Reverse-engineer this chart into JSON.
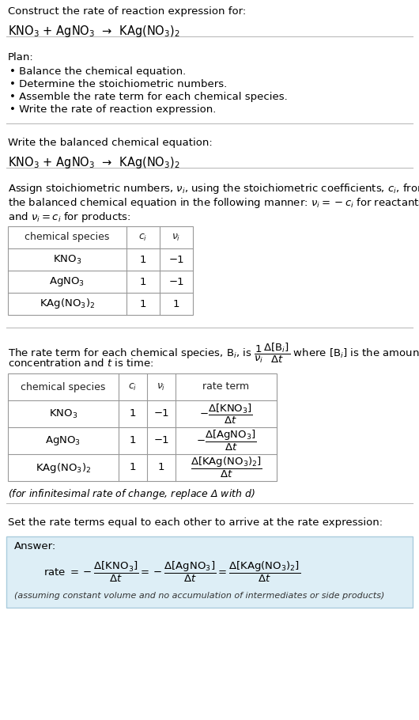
{
  "bg_color": "#ffffff",
  "text_color": "#000000",
  "section1_title": "Construct the rate of reaction expression for:",
  "section1_equation": "KNO$_3$ + AgNO$_3$  →  KAg(NO$_3$)$_2$",
  "plan_title": "Plan:",
  "plan_items": [
    "• Balance the chemical equation.",
    "• Determine the stoichiometric numbers.",
    "• Assemble the rate term for each chemical species.",
    "• Write the rate of reaction expression."
  ],
  "balanced_eq_title": "Write the balanced chemical equation:",
  "balanced_eq": "KNO$_3$ + AgNO$_3$  →  KAg(NO$_3$)$_2$",
  "stoich_intro_line1": "Assign stoichiometric numbers, $\\nu_i$, using the stoichiometric coefficients, $c_i$, from",
  "stoich_intro_line2": "the balanced chemical equation in the following manner: $\\nu_i = -c_i$ for reactants",
  "stoich_intro_line3": "and $\\nu_i = c_i$ for products:",
  "table1_headers": [
    "chemical species",
    "$c_i$",
    "$\\nu_i$"
  ],
  "table1_rows": [
    [
      "KNO$_3$",
      "1",
      "−1"
    ],
    [
      "AgNO$_3$",
      "1",
      "−1"
    ],
    [
      "KAg(NO$_3$)$_2$",
      "1",
      "1"
    ]
  ],
  "rate_intro_line1": "The rate term for each chemical species, B$_i$, is $\\dfrac{1}{\\nu_i}\\dfrac{\\Delta[\\mathrm{B}_i]}{\\Delta t}$ where [B$_i$] is the amount",
  "rate_intro_line2": "concentration and $t$ is time:",
  "table2_headers": [
    "chemical species",
    "$c_i$",
    "$\\nu_i$",
    "rate term"
  ],
  "table2_rows": [
    [
      "KNO$_3$",
      "1",
      "−1",
      "$-\\dfrac{\\Delta[\\mathrm{KNO_3}]}{\\Delta t}$"
    ],
    [
      "AgNO$_3$",
      "1",
      "−1",
      "$-\\dfrac{\\Delta[\\mathrm{AgNO_3}]}{\\Delta t}$"
    ],
    [
      "KAg(NO$_3$)$_2$",
      "1",
      "1",
      "$\\dfrac{\\Delta[\\mathrm{KAg(NO_3)_2}]}{\\Delta t}$"
    ]
  ],
  "infinitesimal_note": "(for infinitesimal rate of change, replace Δ with $d$)",
  "rate_expr_intro": "Set the rate terms equal to each other to arrive at the rate expression:",
  "answer_label": "Answer:",
  "answer_eq": "rate $= -\\dfrac{\\Delta[\\mathrm{KNO_3}]}{\\Delta t} = -\\dfrac{\\Delta[\\mathrm{AgNO_3}]}{\\Delta t} = \\dfrac{\\Delta[\\mathrm{KAg(NO_3)_2}]}{\\Delta t}$",
  "answer_note": "(assuming constant volume and no accumulation of intermediates or side products)",
  "answer_bg": "#ddeef6",
  "answer_border": "#aaccdd"
}
